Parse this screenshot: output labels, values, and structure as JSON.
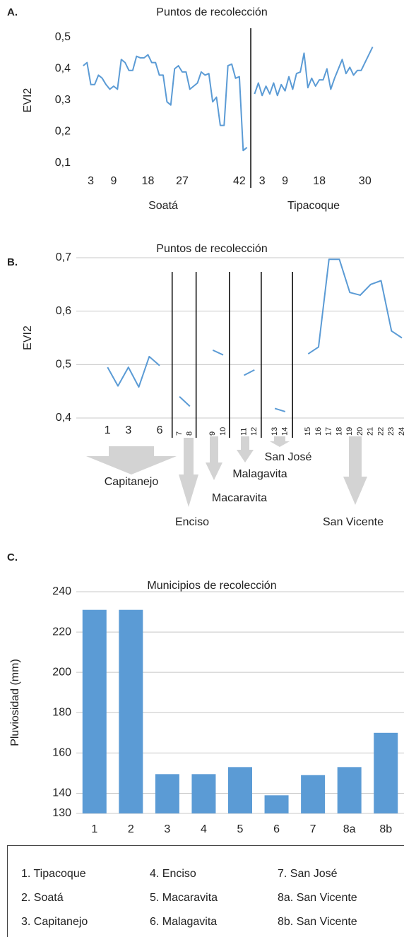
{
  "chart_data": [
    {
      "type": "line",
      "label": "A.",
      "title": "Puntos de recolección",
      "ylabel": "EVI2",
      "color": "#5b9bd5",
      "ylim": [
        0.1,
        0.5
      ],
      "yticks": [
        {
          "value": 0.1,
          "label": "0,1"
        },
        {
          "value": 0.2,
          "label": "0,2"
        },
        {
          "value": 0.3,
          "label": "0,3"
        },
        {
          "value": 0.4,
          "label": "0,4"
        },
        {
          "value": 0.5,
          "label": "0,5"
        }
      ],
      "groups": [
        {
          "name": "Soatá",
          "xlim": [
            -1,
            45
          ],
          "xticks": [
            3,
            9,
            18,
            27,
            42
          ],
          "x": [
            1,
            2,
            3,
            4,
            5,
            6,
            7,
            8,
            9,
            10,
            11,
            12,
            13,
            14,
            15,
            16,
            17,
            18,
            19,
            20,
            21,
            22,
            23,
            24,
            25,
            26,
            27,
            28,
            29,
            30,
            31,
            32,
            33,
            34,
            35,
            36,
            37,
            38,
            39,
            40,
            41,
            42,
            43,
            44
          ],
          "values": [
            0.41,
            0.42,
            0.35,
            0.35,
            0.38,
            0.37,
            0.35,
            0.335,
            0.345,
            0.335,
            0.43,
            0.42,
            0.395,
            0.395,
            0.44,
            0.435,
            0.435,
            0.445,
            0.42,
            0.42,
            0.38,
            0.38,
            0.295,
            0.285,
            0.4,
            0.41,
            0.39,
            0.39,
            0.335,
            0.345,
            0.355,
            0.39,
            0.38,
            0.385,
            0.295,
            0.31,
            0.22,
            0.22,
            0.41,
            0.415,
            0.37,
            0.375,
            0.14,
            0.15
          ]
        },
        {
          "name": "Tipacoque",
          "xlim": [
            0,
            33
          ],
          "xticks": [
            3,
            9,
            18,
            30
          ],
          "x": [
            1,
            2,
            3,
            4,
            5,
            6,
            7,
            8,
            9,
            10,
            11,
            12,
            13,
            14,
            15,
            16,
            17,
            18,
            19,
            20,
            21,
            22,
            23,
            24,
            25,
            26,
            27,
            28,
            29,
            30,
            31,
            32
          ],
          "values": [
            0.32,
            0.355,
            0.315,
            0.345,
            0.32,
            0.355,
            0.315,
            0.35,
            0.33,
            0.375,
            0.335,
            0.385,
            0.39,
            0.45,
            0.34,
            0.37,
            0.345,
            0.365,
            0.365,
            0.4,
            0.335,
            0.37,
            0.4,
            0.43,
            0.385,
            0.405,
            0.38,
            0.395,
            0.395,
            0.42,
            0.445,
            0.47
          ]
        }
      ]
    },
    {
      "type": "line",
      "label": "B.",
      "title": "Puntos de recolección",
      "ylabel": "EVI2",
      "color": "#5b9bd5",
      "grid": true,
      "ylim": [
        0.4,
        0.7
      ],
      "yticks": [
        {
          "value": 0.4,
          "label": "0,4"
        },
        {
          "value": 0.5,
          "label": "0,5"
        },
        {
          "value": 0.6,
          "label": "0,6"
        },
        {
          "value": 0.7,
          "label": "0,7"
        }
      ],
      "groups": [
        {
          "name": "Capitanejo",
          "xlim": [
            -2,
            7.2
          ],
          "xticks": [
            1,
            3,
            6
          ],
          "xtick_rotation": 0,
          "x": [
            1,
            2,
            3,
            4,
            5,
            6
          ],
          "values": [
            0.495,
            0.46,
            0.495,
            0.458,
            0.515,
            0.498
          ]
        },
        {
          "name": "Enciso",
          "xlim": [
            6.3,
            8.6
          ],
          "xticks": [
            7,
            8
          ],
          "xtick_rotation": -90,
          "x": [
            7,
            8
          ],
          "values": [
            0.44,
            0.422
          ]
        },
        {
          "name": "Macaravita",
          "xlim": [
            7.4,
            10.6
          ],
          "xticks": [
            9,
            10
          ],
          "xtick_rotation": -90,
          "x": [
            9,
            10
          ],
          "values": [
            0.527,
            0.518
          ]
        },
        {
          "name": "Malagavita",
          "xlim": [
            9.6,
            12.65
          ],
          "xticks": [
            11,
            12
          ],
          "xtick_rotation": -90,
          "x": [
            11,
            12
          ],
          "values": [
            0.48,
            0.49
          ]
        },
        {
          "name": "San José",
          "xlim": [
            11.7,
            14.7
          ],
          "xticks": [
            13,
            14
          ],
          "xtick_rotation": -90,
          "x": [
            13,
            14
          ],
          "values": [
            0.418,
            0.412
          ]
        },
        {
          "name": "San Vicente",
          "xlim": [
            13.5,
            24.2
          ],
          "xticks": [
            15,
            16,
            17,
            18,
            19,
            20,
            21,
            22,
            23,
            24
          ],
          "xtick_rotation": -90,
          "x": [
            15,
            16,
            17,
            18,
            19,
            20,
            21,
            22,
            23,
            24
          ],
          "values": [
            0.52,
            0.533,
            0.697,
            0.697,
            0.635,
            0.63,
            0.65,
            0.657,
            0.563,
            0.55
          ]
        }
      ]
    },
    {
      "type": "bar",
      "label": "C.",
      "title": "Municipios de recolección",
      "ylabel": "Pluviosidad (mm)",
      "color": "#5b9bd5",
      "grid": true,
      "ylim": [
        130,
        240
      ],
      "yticks": [
        130,
        140,
        160,
        180,
        200,
        220,
        240
      ],
      "categories": [
        "1",
        "2",
        "3",
        "4",
        "5",
        "6",
        "7",
        "8a",
        "8b"
      ],
      "values": [
        231,
        231,
        149.5,
        149.5,
        153,
        139,
        149,
        153,
        170
      ],
      "legend": [
        "1. Tipacoque",
        "2. Soatá",
        "3. Capitanejo",
        "4. Enciso",
        "5. Macaravita",
        "6. Malagavita",
        "7. San José",
        "8a. San Vicente",
        "8b. San Vicente"
      ]
    }
  ]
}
